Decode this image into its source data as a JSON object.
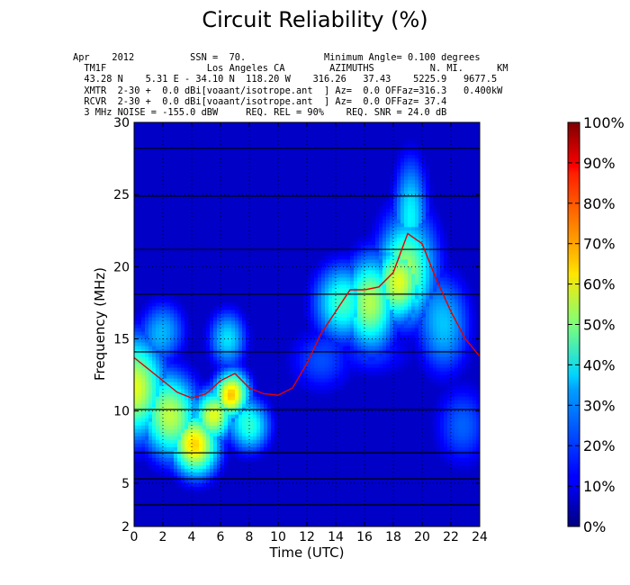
{
  "chart_data": {
    "type": "heatmap",
    "title": "Circuit Reliability (%)",
    "header_lines": [
      "Apr    2012          SSN =  70.              Minimum Angle= 0.100 degrees",
      "  TM1F                  Los Angeles CA        AZIMUTHS          N. MI.      KM",
      "  43.28 N    5.31 E - 34.10 N  118.20 W    316.26   37.43    5225.9   9677.5",
      "  XMTR  2-30 +  0.0 dBi[voaant/isotrope.ant  ] Az=  0.0 OFFaz=316.3   0.400kW",
      "  RCVR  2-30 +  0.0 dBi[voaant/isotrope.ant  ] Az=  0.0 OFFaz= 37.4",
      "  3 MHz NOISE = -155.0 dBW     REQ. REL = 90%    REQ. SNR = 24.0 dB"
    ],
    "xlabel": "Time (UTC)",
    "ylabel": "Frequency (MHz)",
    "xlim": [
      0,
      24
    ],
    "ylim": [
      2,
      30
    ],
    "x_ticks": [
      "0",
      "2",
      "4",
      "6",
      "8",
      "10",
      "12",
      "14",
      "16",
      "18",
      "20",
      "22",
      "24"
    ],
    "y_ticks": [
      "2",
      "5",
      "10",
      "15",
      "20",
      "25",
      "30"
    ],
    "y_tick_values": [
      2,
      5,
      10,
      15,
      20,
      25,
      30
    ],
    "colorbar": {
      "ticks": [
        "0%",
        "10%",
        "20%",
        "30%",
        "40%",
        "50%",
        "60%",
        "70%",
        "80%",
        "90%",
        "100%"
      ],
      "colormap": "jet"
    },
    "grid": "dotted",
    "hour_columns": [
      0,
      1,
      2,
      3,
      4,
      5,
      6,
      7,
      8,
      9,
      10,
      11,
      12,
      13,
      14,
      15,
      16,
      17,
      18,
      19,
      20,
      21,
      22,
      23,
      24
    ],
    "band_frequencies": [
      3.5,
      5.3,
      7.1,
      10.1,
      14.1,
      18.1,
      21.2,
      24.9,
      28.2
    ],
    "muf_x": [
      0,
      1,
      2,
      3,
      4,
      5,
      6,
      7,
      8,
      9,
      10,
      11,
      12,
      13,
      14,
      15,
      16,
      17,
      18,
      19,
      20,
      21,
      22,
      23,
      24
    ],
    "muf_y": [
      13.7,
      12.9,
      12.1,
      11.3,
      10.9,
      11.2,
      12.1,
      12.6,
      11.6,
      11.2,
      11.1,
      11.6,
      13.3,
      15.4,
      16.9,
      18.4,
      18.4,
      18.6,
      19.6,
      22.3,
      21.6,
      19.1,
      16.9,
      15.0,
      13.8
    ],
    "reliability_blobs": [
      {
        "cx": 0.0,
        "cy": 11.6,
        "sx": 1.6,
        "sy": 2.6,
        "a": 0.6
      },
      {
        "cx": 2.6,
        "cy": 9.6,
        "sx": 1.4,
        "sy": 2.2,
        "a": 0.55
      },
      {
        "cx": 4.3,
        "cy": 7.6,
        "sx": 1.2,
        "sy": 1.6,
        "a": 0.64
      },
      {
        "cx": 5.6,
        "cy": 9.8,
        "sx": 1.0,
        "sy": 1.3,
        "a": 0.58
      },
      {
        "cx": 6.8,
        "cy": 11.2,
        "sx": 0.9,
        "sy": 1.2,
        "a": 0.66
      },
      {
        "cx": 8.0,
        "cy": 9.0,
        "sx": 1.1,
        "sy": 1.4,
        "a": 0.42
      },
      {
        "cx": 2.0,
        "cy": 15.5,
        "sx": 1.2,
        "sy": 1.6,
        "a": 0.3
      },
      {
        "cx": 6.5,
        "cy": 15.0,
        "sx": 1.0,
        "sy": 1.5,
        "a": 0.35
      },
      {
        "cx": 14.5,
        "cy": 17.5,
        "sx": 1.5,
        "sy": 2.0,
        "a": 0.44
      },
      {
        "cx": 16.5,
        "cy": 17.5,
        "sx": 1.3,
        "sy": 2.5,
        "a": 0.52
      },
      {
        "cx": 18.5,
        "cy": 19.0,
        "sx": 1.2,
        "sy": 2.0,
        "a": 0.58
      },
      {
        "cx": 19.0,
        "cy": 20.0,
        "sx": 1.6,
        "sy": 3.0,
        "a": 0.44
      },
      {
        "cx": 19.2,
        "cy": 24.0,
        "sx": 0.9,
        "sy": 2.8,
        "a": 0.34
      },
      {
        "cx": 21.5,
        "cy": 16.0,
        "sx": 1.4,
        "sy": 2.6,
        "a": 0.32
      },
      {
        "cx": 22.8,
        "cy": 9.0,
        "sx": 1.5,
        "sy": 2.2,
        "a": 0.22
      },
      {
        "cx": 13.0,
        "cy": 13.5,
        "sx": 1.8,
        "sy": 1.8,
        "a": 0.2
      },
      {
        "cx": 16.5,
        "cy": 14.0,
        "sx": 2.4,
        "sy": 1.4,
        "a": 0.16
      }
    ]
  }
}
